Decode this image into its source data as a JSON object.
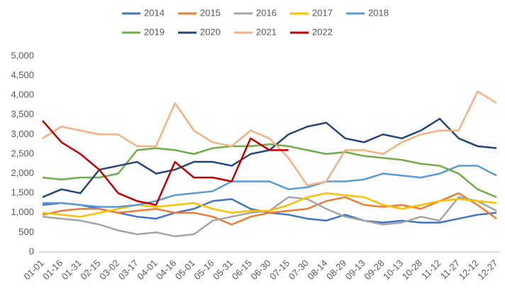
{
  "chart_data": {
    "type": "line",
    "categories": [
      "01-01",
      "01-16",
      "01-31",
      "02-15",
      "03-02",
      "03-17",
      "04-01",
      "04-16",
      "05-01",
      "05-16",
      "05-31",
      "06-15",
      "06-30",
      "07-15",
      "07-30",
      "08-14",
      "08-29",
      "09-13",
      "09-28",
      "10-13",
      "10-28",
      "11-12",
      "11-27",
      "12-12",
      "12-27"
    ],
    "ylim": [
      0,
      5000
    ],
    "yticks": [
      0,
      500,
      {
        "value": 1000,
        "label": "1,000"
      },
      {
        "value": 1500,
        "label": "1,500"
      },
      {
        "value": 2000,
        "label": "2,000"
      },
      {
        "value": 2500,
        "label": "2,500"
      },
      {
        "value": 3000,
        "label": "3,000"
      },
      {
        "value": 3500,
        "label": "3,500"
      },
      {
        "value": 4000,
        "label": "4,000"
      },
      {
        "value": 4500,
        "label": "4,500"
      },
      {
        "value": 5000,
        "label": "5,000"
      }
    ],
    "grid": false,
    "legend": "top",
    "series": [
      {
        "name": "2014",
        "color": "#4472c4",
        "values": [
          1200,
          1250,
          1200,
          1100,
          1000,
          900,
          850,
          1000,
          1100,
          1300,
          1350,
          1100,
          1000,
          950,
          850,
          800,
          950,
          800,
          750,
          800,
          750,
          750,
          850,
          950,
          1000
        ]
      },
      {
        "name": "2015",
        "color": "#ed7d31",
        "values": [
          950,
          1050,
          1100,
          1100,
          1000,
          1050,
          1100,
          1000,
          1000,
          900,
          700,
          900,
          1000,
          1050,
          1100,
          1300,
          1400,
          1200,
          1150,
          1200,
          1100,
          1300,
          1500,
          1200,
          850
        ]
      },
      {
        "name": "2016",
        "color": "#a5a5a5",
        "values": [
          900,
          850,
          800,
          700,
          550,
          450,
          500,
          400,
          450,
          800,
          900,
          1000,
          1050,
          1400,
          1350,
          1100,
          900,
          800,
          700,
          750,
          900,
          800,
          1400,
          1300,
          1050
        ]
      },
      {
        "name": "2017",
        "color": "#ffc000",
        "values": [
          1000,
          950,
          900,
          1000,
          1100,
          1200,
          1150,
          1200,
          1250,
          1100,
          1000,
          1050,
          1050,
          1200,
          1400,
          1500,
          1450,
          1400,
          1200,
          1100,
          1200,
          1300,
          1350,
          1300,
          1250
        ]
      },
      {
        "name": "2018",
        "color": "#5b9bd5",
        "values": [
          1250,
          1250,
          1200,
          1150,
          1150,
          1200,
          1300,
          1450,
          1500,
          1550,
          1800,
          1800,
          1800,
          1600,
          1650,
          1800,
          1800,
          1850,
          2000,
          1950,
          1900,
          2000,
          2200,
          2200,
          1950
        ]
      },
      {
        "name": "2019",
        "color": "#70ad47",
        "values": [
          1900,
          1850,
          1900,
          1900,
          2000,
          2600,
          2650,
          2600,
          2500,
          2650,
          2700,
          2700,
          2750,
          2700,
          2600,
          2500,
          2550,
          2450,
          2400,
          2350,
          2250,
          2200,
          2000,
          1600,
          1400
        ]
      },
      {
        "name": "2020",
        "color": "#264478",
        "values": [
          1400,
          1600,
          1500,
          2100,
          2200,
          2300,
          2000,
          2100,
          2300,
          2300,
          2200,
          2500,
          2600,
          3000,
          3200,
          3300,
          2900,
          2800,
          3000,
          2900,
          3100,
          3400,
          2900,
          2700,
          2650
        ]
      },
      {
        "name": "2021",
        "color": "#f4b183",
        "values": [
          2900,
          3200,
          3100,
          3000,
          3000,
          2700,
          2700,
          3800,
          3100,
          2800,
          2700,
          3100,
          2900,
          2400,
          1700,
          1800,
          2600,
          2600,
          2500,
          2800,
          3000,
          3100,
          3100,
          4100,
          3800
        ]
      },
      {
        "name": "2022",
        "color": "#c00000",
        "values": [
          3350,
          2800,
          2500,
          2100,
          1500,
          1300,
          1200,
          2300,
          1900,
          1900,
          1800,
          2900,
          2600,
          2600,
          null,
          null,
          null,
          null,
          null,
          null,
          null,
          null,
          null,
          null,
          null
        ]
      }
    ]
  }
}
